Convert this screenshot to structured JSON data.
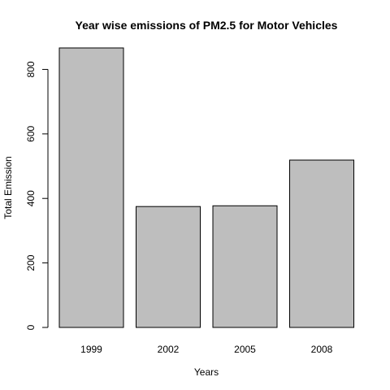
{
  "chart_data": {
    "type": "bar",
    "title": "Year wise emissions of PM2.5 for Motor Vehicles",
    "xlabel": "Years",
    "ylabel": "Total Emission",
    "categories": [
      "1999",
      "2002",
      "2005",
      "2008"
    ],
    "values": [
      866.6,
      374.9,
      377.2,
      518.9
    ],
    "ylim": [
      0,
      866.6
    ],
    "yticks": [
      0,
      200,
      400,
      600,
      800
    ],
    "grid": false,
    "bar_color": "#bebebe",
    "edge_color": "#000000"
  }
}
